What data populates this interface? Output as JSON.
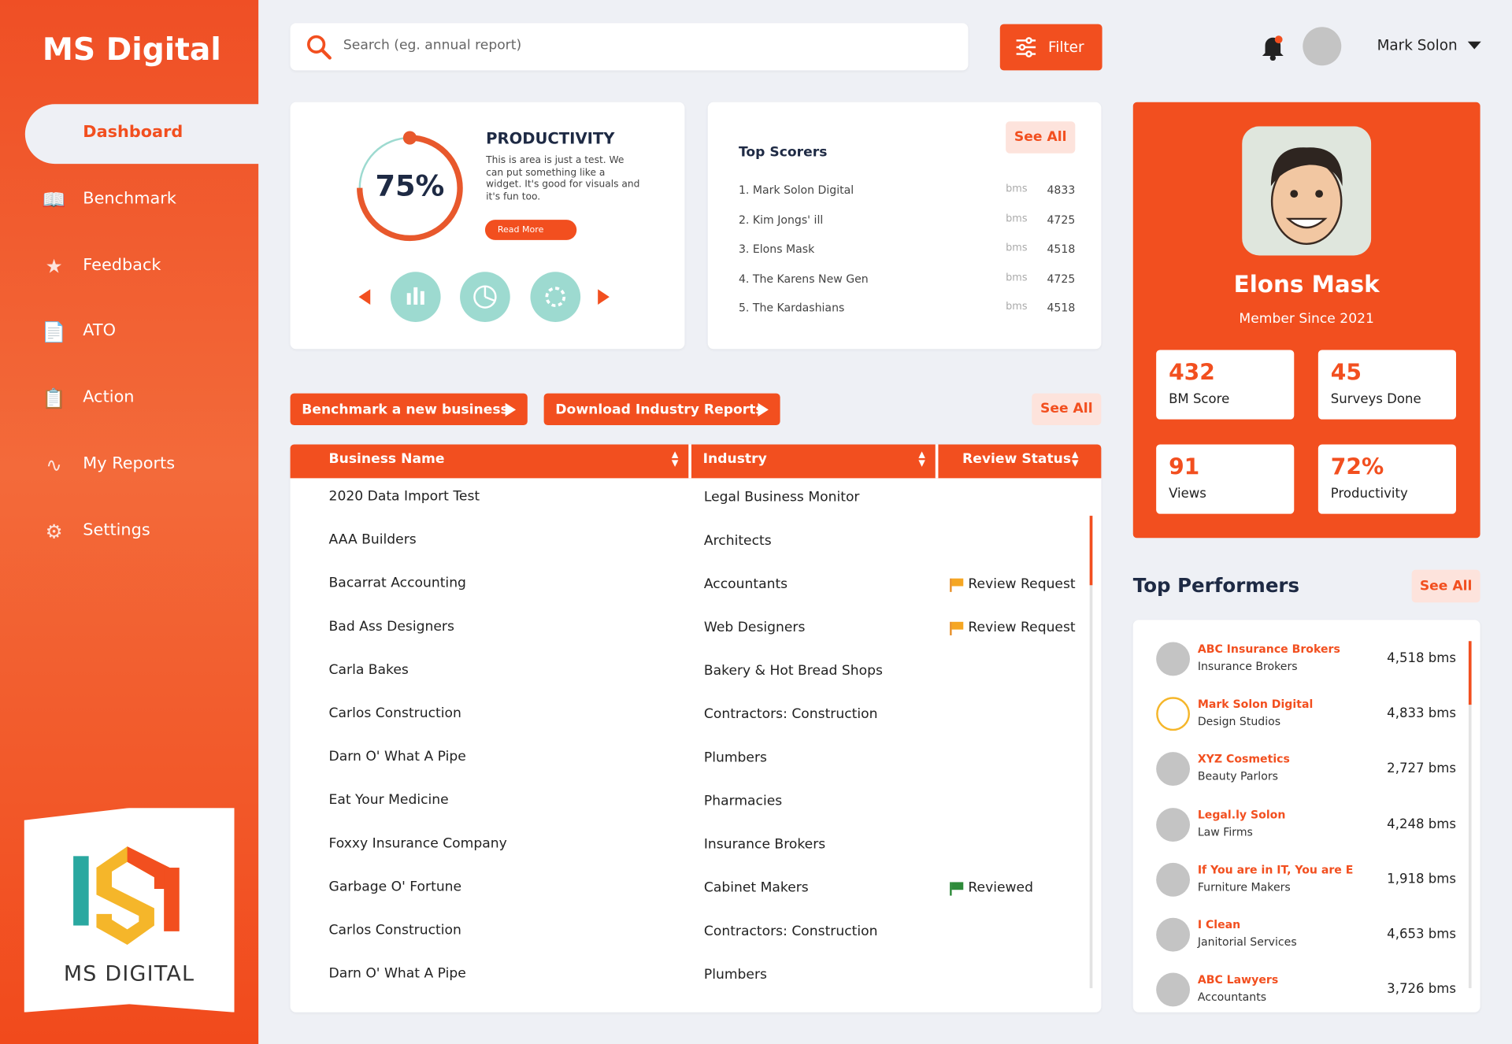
{
  "brand": "MS Digital",
  "nav": [
    "Dashboard",
    "Benchmark",
    "Feedback",
    "ATO",
    "Action",
    "My Reports",
    "Settings"
  ],
  "logo_text": "MS DIGITAL",
  "search_placeholder": "Search (eg. annual report)",
  "filter": "Filter",
  "user": "Mark Solon",
  "productivity": {
    "title": "PRODUCTIVITY",
    "value": 75,
    "value_label": "75%",
    "text": "This is area is just a test. We can put something like a widget. It's good for visuals and it's fun too.",
    "button": "Read More"
  },
  "top_scorers": {
    "title": "Top Scorers",
    "see_all": "See All",
    "rows": [
      [
        "1. Mark Solon Digital",
        "bms",
        "4833"
      ],
      [
        "2. Kim Jongs' ill",
        "bms",
        "4725"
      ],
      [
        "3. Elons Mask",
        "bms",
        "4518"
      ],
      [
        "4. The Karens New Gen",
        "bms",
        "4725"
      ],
      [
        "5. The Kardashians",
        "bms",
        "4518"
      ]
    ]
  },
  "actions": [
    "Benchmark a new business",
    "Download Industry Reports",
    "See All"
  ],
  "table": {
    "headers": [
      "Business Name",
      "Industry",
      "Review Status"
    ],
    "rows": [
      [
        "2020 Data Import Test",
        "Legal Business Monitor",
        ""
      ],
      [
        "AAA Builders",
        "Architects",
        ""
      ],
      [
        "Bacarrat Accounting",
        "Accountants",
        "Review Request"
      ],
      [
        "Bad Ass Designers",
        "Web Designers",
        "Review Request"
      ],
      [
        "Carla Bakes",
        "Bakery & Hot Bread Shops",
        ""
      ],
      [
        "Carlos Construction",
        "Contractors: Construction",
        ""
      ],
      [
        "Darn O' What A Pipe",
        "Plumbers",
        ""
      ],
      [
        "Eat Your Medicine",
        "Pharmacies",
        ""
      ],
      [
        "Foxxy Insurance Company",
        "Insurance Brokers",
        ""
      ],
      [
        "Garbage O' Fortune",
        "Cabinet Makers",
        "Reviewed"
      ],
      [
        "Carlos Construction",
        "Contractors: Construction",
        ""
      ],
      [
        "Darn O' What A Pipe",
        "Plumbers",
        ""
      ]
    ]
  },
  "profile": {
    "name": "Elons Mask",
    "since": "Member Since 2021",
    "stats": [
      {
        "value": "432",
        "label": "BM Score"
      },
      {
        "value": "45",
        "label": "Surveys Done"
      },
      {
        "value": "91",
        "label": "Views"
      },
      {
        "value": "72%",
        "label": "Productivity"
      }
    ]
  },
  "top_performers": {
    "title": "Top Performers",
    "see_all": "See All",
    "rows": [
      [
        "ABC Insurance Brokers",
        "Insurance Brokers",
        "4,518 bms"
      ],
      [
        "Mark Solon Digital",
        "Design Studios",
        "4,833 bms"
      ],
      [
        "XYZ Cosmetics",
        "Beauty Parlors",
        "2,727 bms"
      ],
      [
        "Legal.ly Solon",
        "Law Firms",
        "4,248 bms"
      ],
      [
        "If You are in IT, You are E",
        "Furniture Makers",
        "1,918 bms"
      ],
      [
        "I Clean",
        "Janitorial Services",
        "4,653 bms"
      ],
      [
        "ABC Lawyers",
        "Accountants",
        "3,726 bms"
      ]
    ]
  }
}
